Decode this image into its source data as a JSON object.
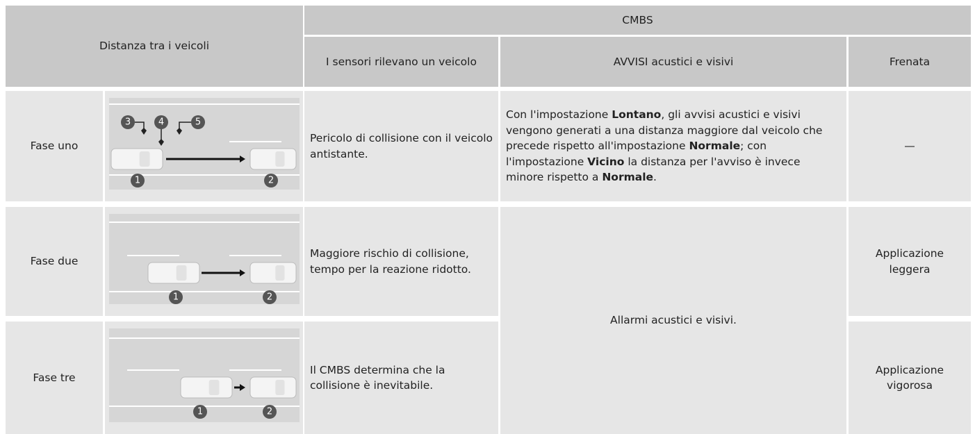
{
  "table": {
    "header": {
      "distance": "Distanza tra i veicoli",
      "cmbs": "CMBS",
      "columns": [
        "I sensori rilevano un veicolo",
        "AVVISI acustici e visivi",
        "Frenata"
      ]
    },
    "rows": [
      {
        "phase": "Fase uno",
        "markers": [
          "3",
          "4",
          "5",
          "1",
          "2"
        ],
        "detection": "Pericolo di collisione con il veicolo antistante.",
        "warning": [
          "Con l'impostazione ",
          "Lontano",
          ", gli avvisi acustici e visivi vengono generati a una distanza maggiore dal veicolo che precede rispetto all'impostazione ",
          "Normale",
          "; con l'impostazione ",
          "Vicino",
          " la distanza per l'avviso è invece minore rispetto a ",
          "Normale",
          "."
        ],
        "braking": "—"
      },
      {
        "phase": "Fase due",
        "markers": [
          "1",
          "2"
        ],
        "detection": "Maggiore rischio di collisione, tempo per la reazione ridotto.",
        "braking": "Applicazione leggera"
      },
      {
        "phase": "Fase tre",
        "markers": [
          "1",
          "2"
        ],
        "detection": "Il CMBS determina che la collisione è inevitabile.",
        "braking": "Applicazione vigorosa"
      }
    ],
    "shared_warning": "Allarmi acustici e visivi."
  }
}
